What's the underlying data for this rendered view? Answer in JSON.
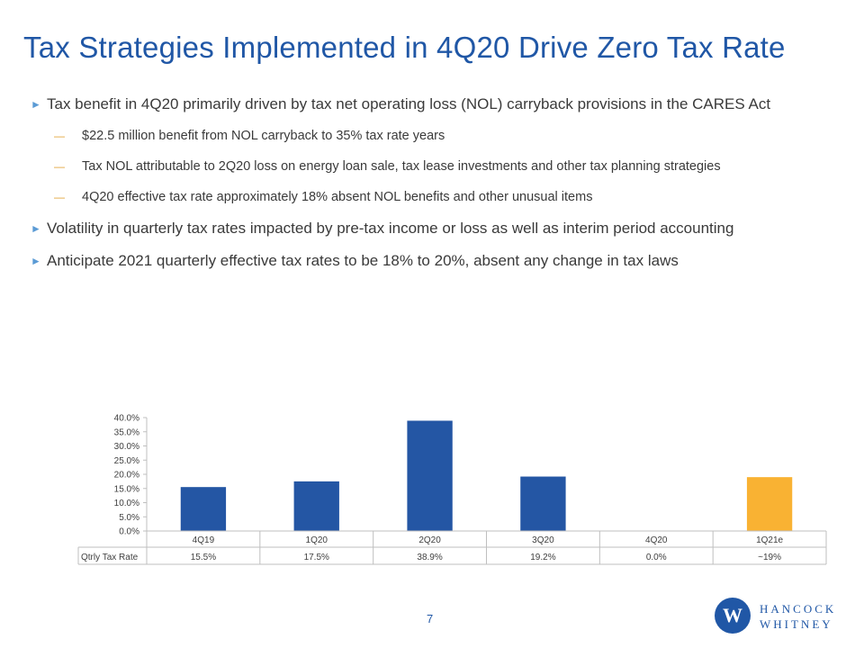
{
  "slide": {
    "title": "Tax Strategies Implemented in 4Q20 Drive Zero Tax Rate",
    "page_number": "7"
  },
  "bullets": [
    {
      "level": 1,
      "text": "Tax benefit in 4Q20 primarily driven by tax net operating loss (NOL) carryback provisions in the CARES Act"
    },
    {
      "level": 2,
      "text": "$22.5 million benefit from NOL carryback to 35% tax rate years"
    },
    {
      "level": 2,
      "text": "Tax NOL attributable to 2Q20 loss on energy loan sale, tax lease investments and other tax planning strategies"
    },
    {
      "level": 2,
      "text": "4Q20 effective tax rate approximately 18% absent NOL benefits and other unusual items"
    },
    {
      "level": 1,
      "text": "Volatility in quarterly tax rates impacted by pre-tax income or loss as well as interim period accounting"
    },
    {
      "level": 1,
      "text": "Anticipate 2021 quarterly effective tax rates to be 18% to 20%, absent any change in tax laws"
    }
  ],
  "logo": {
    "line1": "HANCOCK",
    "line2": "WHITNEY",
    "mark": "W",
    "name": "hancock-whitney-logo"
  },
  "chart_data": {
    "type": "bar",
    "categories": [
      "4Q19",
      "1Q20",
      "2Q20",
      "3Q20",
      "4Q20",
      "1Q21e"
    ],
    "series": [
      {
        "name": "Qtrly Tax Rate",
        "values": [
          15.5,
          17.5,
          38.9,
          19.2,
          0.0,
          19.0
        ]
      }
    ],
    "table_values": [
      "15.5%",
      "17.5%",
      "38.9%",
      "19.2%",
      "0.0%",
      "~19%"
    ],
    "bar_colors": [
      "#2456a4",
      "#2456a4",
      "#2456a4",
      "#2456a4",
      "#2456a4",
      "#f9b233"
    ],
    "y_ticks": [
      "0.0%",
      "5.0%",
      "10.0%",
      "15.0%",
      "20.0%",
      "25.0%",
      "30.0%",
      "35.0%",
      "40.0%"
    ],
    "ylim": [
      0,
      40
    ],
    "grid": false,
    "legend": "data table below chart",
    "title": "",
    "xlabel": "",
    "ylabel": ""
  }
}
